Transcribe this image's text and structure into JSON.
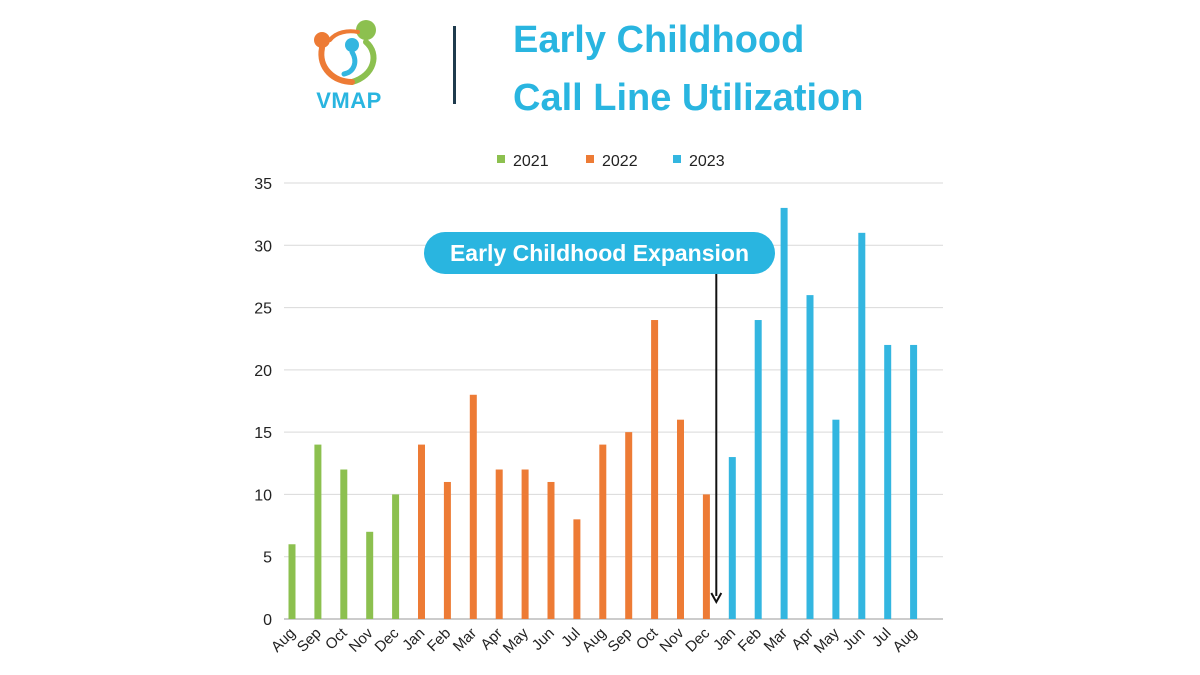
{
  "header": {
    "logo_text": "VMAP",
    "title_line1": "Early Childhood",
    "title_line2": "Call Line Utilization"
  },
  "colors": {
    "green": "#8cc04f",
    "orange": "#ed7b35",
    "blue": "#33b6e0",
    "title": "#29b5e0",
    "divider": "#1f3b4d"
  },
  "annotation": {
    "label": "Early Childhood Expansion",
    "points_to": "Jan"
  },
  "chart_data": {
    "type": "bar",
    "title": "Early Childhood Call Line Utilization",
    "xlabel": "",
    "ylabel": "",
    "ylim": [
      0,
      35
    ],
    "yticks": [
      0,
      5,
      10,
      15,
      20,
      25,
      30,
      35
    ],
    "grid": true,
    "legend_position": "top-center",
    "legend": [
      {
        "name": "2021",
        "color": "#8cc04f"
      },
      {
        "name": "2022",
        "color": "#ed7b35"
      },
      {
        "name": "2023",
        "color": "#33b6e0"
      }
    ],
    "categories": [
      "Aug",
      "Sep",
      "Oct",
      "Nov",
      "Dec",
      "Jan",
      "Feb",
      "Mar",
      "Apr",
      "May",
      "Jun",
      "Jul",
      "Aug",
      "Sep",
      "Oct",
      "Nov",
      "Dec",
      "Jan",
      "Feb",
      "Mar",
      "Apr",
      "May",
      "Jun",
      "Jul",
      "Aug"
    ],
    "bars": [
      {
        "label": "Aug",
        "year": "2021",
        "value": 6
      },
      {
        "label": "Sep",
        "year": "2021",
        "value": 14
      },
      {
        "label": "Oct",
        "year": "2021",
        "value": 12
      },
      {
        "label": "Nov",
        "year": "2021",
        "value": 7
      },
      {
        "label": "Dec",
        "year": "2021",
        "value": 10
      },
      {
        "label": "Jan",
        "year": "2022",
        "value": 14
      },
      {
        "label": "Feb",
        "year": "2022",
        "value": 11
      },
      {
        "label": "Mar",
        "year": "2022",
        "value": 18
      },
      {
        "label": "Apr",
        "year": "2022",
        "value": 12
      },
      {
        "label": "May",
        "year": "2022",
        "value": 12
      },
      {
        "label": "Jun",
        "year": "2022",
        "value": 11
      },
      {
        "label": "Jul",
        "year": "2022",
        "value": 8
      },
      {
        "label": "Aug",
        "year": "2022",
        "value": 14
      },
      {
        "label": "Sep",
        "year": "2022",
        "value": 15
      },
      {
        "label": "Oct",
        "year": "2022",
        "value": 24
      },
      {
        "label": "Nov",
        "year": "2022",
        "value": 16
      },
      {
        "label": "Dec",
        "year": "2022",
        "value": 10
      },
      {
        "label": "Jan",
        "year": "2023",
        "value": 13
      },
      {
        "label": "Feb",
        "year": "2023",
        "value": 24
      },
      {
        "label": "Mar",
        "year": "2023",
        "value": 33
      },
      {
        "label": "Apr",
        "year": "2023",
        "value": 26
      },
      {
        "label": "May",
        "year": "2023",
        "value": 16
      },
      {
        "label": "Jun",
        "year": "2023",
        "value": 31
      },
      {
        "label": "Jul",
        "year": "2023",
        "value": 22
      },
      {
        "label": "Aug",
        "year": "2023",
        "value": 22
      }
    ]
  }
}
